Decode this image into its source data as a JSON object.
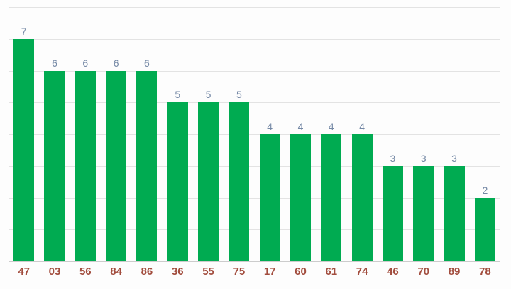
{
  "chart": {
    "background_color": "#fdfdfd",
    "bar_color": "#00ab51",
    "value_label_color": "#7488a5",
    "category_label_color": "#a24d3e",
    "gridline_color": "#e3e3e3",
    "baseline_color": "#cccccc"
  },
  "chart_data": {
    "type": "bar",
    "title": "",
    "xlabel": "",
    "ylabel": "",
    "categories": [
      "47",
      "03",
      "56",
      "84",
      "86",
      "36",
      "55",
      "75",
      "17",
      "60",
      "61",
      "74",
      "46",
      "70",
      "89",
      "78"
    ],
    "values": [
      7,
      6,
      6,
      6,
      6,
      5,
      5,
      5,
      4,
      4,
      4,
      4,
      3,
      3,
      3,
      2
    ],
    "ylim": [
      0,
      8
    ],
    "gridline_step": 1,
    "grid": true,
    "legend": "none",
    "y_axis_tick_labels_shown": false,
    "value_labels_shown": true
  }
}
